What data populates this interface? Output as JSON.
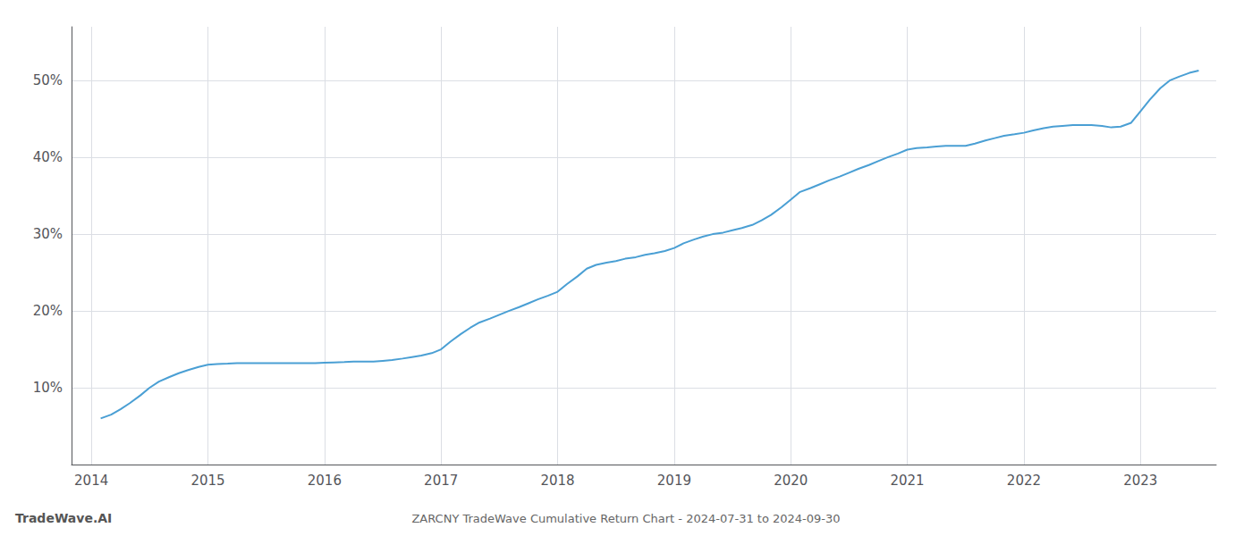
{
  "chart_data": {
    "type": "line",
    "title": "ZARCNY TradeWave Cumulative Return Chart - 2024-07-31 to 2024-09-30",
    "annotations": [
      "TradeWave.AI"
    ],
    "color": "#4a9fd4",
    "grid": true,
    "x": [
      2014.08,
      2014.17,
      2014.25,
      2014.33,
      2014.42,
      2014.5,
      2014.58,
      2014.67,
      2014.75,
      2014.83,
      2014.92,
      2015.0,
      2015.08,
      2015.17,
      2015.25,
      2015.33,
      2015.42,
      2015.5,
      2015.58,
      2015.67,
      2015.75,
      2015.83,
      2015.92,
      2016.0,
      2016.08,
      2016.17,
      2016.25,
      2016.33,
      2016.42,
      2016.5,
      2016.58,
      2016.67,
      2016.75,
      2016.83,
      2016.92,
      2017.0,
      2017.08,
      2017.17,
      2017.25,
      2017.33,
      2017.42,
      2017.5,
      2017.58,
      2017.67,
      2017.75,
      2017.83,
      2017.92,
      2018.0,
      2018.08,
      2018.17,
      2018.25,
      2018.33,
      2018.42,
      2018.5,
      2018.58,
      2018.67,
      2018.75,
      2018.83,
      2018.92,
      2019.0,
      2019.08,
      2019.17,
      2019.25,
      2019.33,
      2019.42,
      2019.5,
      2019.58,
      2019.67,
      2019.75,
      2019.83,
      2019.92,
      2020.0,
      2020.08,
      2020.17,
      2020.25,
      2020.33,
      2020.42,
      2020.5,
      2020.58,
      2020.67,
      2020.75,
      2020.83,
      2020.92,
      2021.0,
      2021.08,
      2021.17,
      2021.25,
      2021.33,
      2021.42,
      2021.5,
      2021.58,
      2021.67,
      2021.75,
      2021.83,
      2021.92,
      2022.0,
      2022.08,
      2022.17,
      2022.25,
      2022.33,
      2022.42,
      2022.5,
      2022.58,
      2022.67,
      2022.75,
      2022.83,
      2022.92,
      2023.0,
      2023.08,
      2023.17,
      2023.25,
      2023.33,
      2023.42,
      2023.5
    ],
    "values": [
      6.0,
      6.5,
      7.2,
      8.0,
      9.0,
      10.0,
      10.8,
      11.4,
      11.9,
      12.3,
      12.7,
      13.0,
      13.1,
      13.15,
      13.2,
      13.2,
      13.2,
      13.2,
      13.2,
      13.2,
      13.2,
      13.2,
      13.2,
      13.25,
      13.3,
      13.35,
      13.4,
      13.4,
      13.4,
      13.5,
      13.6,
      13.8,
      14.0,
      14.2,
      14.5,
      15.0,
      16.0,
      17.0,
      17.8,
      18.5,
      19.0,
      19.5,
      20.0,
      20.5,
      21.0,
      21.5,
      22.0,
      22.5,
      23.5,
      24.5,
      25.5,
      26.0,
      26.3,
      26.5,
      26.8,
      27.0,
      27.3,
      27.5,
      27.8,
      28.2,
      28.8,
      29.3,
      29.7,
      30.0,
      30.2,
      30.5,
      30.8,
      31.2,
      31.8,
      32.5,
      33.5,
      34.5,
      35.5,
      36.0,
      36.5,
      37.0,
      37.5,
      38.0,
      38.5,
      39.0,
      39.5,
      40.0,
      40.5,
      41.0,
      41.2,
      41.3,
      41.4,
      41.5,
      41.5,
      41.5,
      41.8,
      42.2,
      42.5,
      42.8,
      43.0,
      43.2,
      43.5,
      43.8,
      44.0,
      44.1,
      44.2,
      44.2,
      44.2,
      44.1,
      43.9,
      44.0,
      44.5,
      46.0,
      47.5,
      49.0,
      50.0,
      50.5,
      51.0,
      51.3
    ],
    "xlim": [
      2013.83,
      2023.65
    ],
    "xticks": [
      2014,
      2015,
      2016,
      2017,
      2018,
      2019,
      2020,
      2021,
      2022,
      2023
    ],
    "ylim": [
      0,
      57
    ],
    "yticks": [
      {
        "value": 10,
        "label": "10%"
      },
      {
        "value": 20,
        "label": "20%"
      },
      {
        "value": 30,
        "label": "30%"
      },
      {
        "value": 40,
        "label": "40%"
      },
      {
        "value": 50,
        "label": "50%"
      }
    ]
  }
}
